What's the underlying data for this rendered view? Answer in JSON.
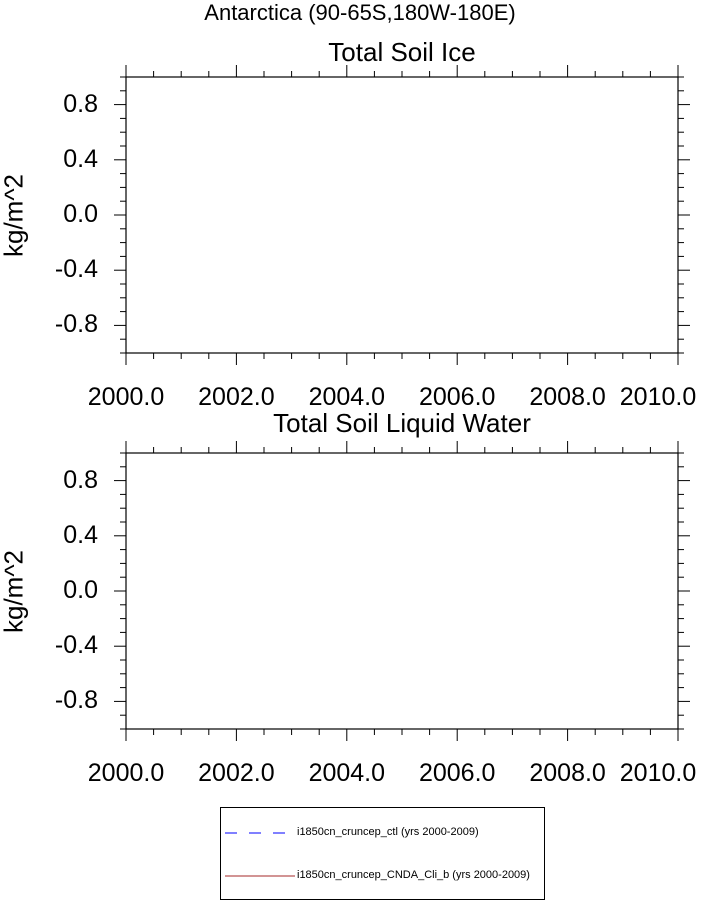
{
  "main_title": "Antarctica (90-65S,180W-180E)",
  "chart_data": [
    {
      "type": "line",
      "title": "Total Soil Ice",
      "ylabel": "kg/m^2",
      "xlabel": "",
      "xlim": [
        2000.0,
        2010.0
      ],
      "ylim": [
        -1.0,
        1.0
      ],
      "xticks": [
        "2000.0",
        "2002.0",
        "2004.0",
        "2006.0",
        "2008.0",
        "2010.0"
      ],
      "yticks": [
        "0.8",
        "0.4",
        "0.0",
        "-0.4",
        "-0.8"
      ],
      "ytick_values": [
        0.8,
        0.4,
        0.0,
        -0.4,
        -0.8
      ],
      "series": [
        {
          "name": "i1850cn_cruncep_ctl (yrs 2000-2009)",
          "color": "#0000ff",
          "x": [],
          "y": []
        },
        {
          "name": "i1850cn_cruncep_CNDA_Cli_b (yrs 2000-2009)",
          "color": "#a52a2a",
          "x": [],
          "y": []
        }
      ]
    },
    {
      "type": "line",
      "title": "Total Soil Liquid Water",
      "ylabel": "kg/m^2",
      "xlabel": "",
      "xlim": [
        2000.0,
        2010.0
      ],
      "ylim": [
        -1.0,
        1.0
      ],
      "xticks": [
        "2000.0",
        "2002.0",
        "2004.0",
        "2006.0",
        "2008.0",
        "2010.0"
      ],
      "yticks": [
        "0.8",
        "0.4",
        "0.0",
        "-0.4",
        "-0.8"
      ],
      "ytick_values": [
        0.8,
        0.4,
        0.0,
        -0.4,
        -0.8
      ],
      "series": [
        {
          "name": "i1850cn_cruncep_ctl (yrs 2000-2009)",
          "color": "#0000ff",
          "x": [],
          "y": []
        },
        {
          "name": "i1850cn_cruncep_CNDA_Cli_b (yrs 2000-2009)",
          "color": "#a52a2a",
          "x": [],
          "y": []
        }
      ]
    }
  ],
  "legend": {
    "placement": "bottom-center",
    "entries": [
      {
        "label": "i1850cn_cruncep_ctl (yrs 2000-2009)",
        "color": "#0000ff",
        "style": "dashed"
      },
      {
        "label": "i1850cn_cruncep_CNDA_Cli_b (yrs 2000-2009)",
        "color": "#a52a2a",
        "style": "solid"
      }
    ]
  }
}
